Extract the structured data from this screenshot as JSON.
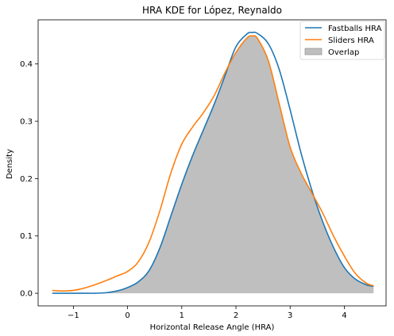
{
  "chart_data": {
    "type": "area",
    "title": "HRA KDE for López, Reynaldo",
    "xlabel": "Horizontal Release Angle (HRA)",
    "ylabel": "Density",
    "xlim": [
      -1.65,
      4.77
    ],
    "ylim": [
      -0.022,
      0.477
    ],
    "xticks": [
      -1,
      0,
      1,
      2,
      3,
      4
    ],
    "yticks": [
      0.0,
      0.1,
      0.2,
      0.3,
      0.4
    ],
    "grid": false,
    "legend_position": "top-right",
    "series": [
      {
        "name": "Fastballs HRA",
        "color": "#1f77b4",
        "x": [
          -1.39,
          -1.2,
          -1.0,
          -0.8,
          -0.6,
          -0.4,
          -0.2,
          0.0,
          0.2,
          0.4,
          0.6,
          0.8,
          1.0,
          1.2,
          1.4,
          1.6,
          1.8,
          2.0,
          2.2,
          2.3,
          2.4,
          2.6,
          2.8,
          3.0,
          3.2,
          3.4,
          3.6,
          3.8,
          4.0,
          4.2,
          4.4,
          4.54
        ],
        "y": [
          0.0,
          0.0,
          0.0,
          0.0,
          0.0,
          0.001,
          0.004,
          0.01,
          0.02,
          0.04,
          0.08,
          0.135,
          0.19,
          0.24,
          0.285,
          0.33,
          0.38,
          0.43,
          0.452,
          0.455,
          0.453,
          0.435,
          0.39,
          0.32,
          0.245,
          0.18,
          0.125,
          0.08,
          0.045,
          0.025,
          0.015,
          0.012
        ]
      },
      {
        "name": "Sliders HRA",
        "color": "#ff7f0e",
        "x": [
          -1.39,
          -1.2,
          -1.0,
          -0.8,
          -0.6,
          -0.4,
          -0.2,
          0.0,
          0.2,
          0.4,
          0.6,
          0.8,
          1.0,
          1.2,
          1.4,
          1.6,
          1.8,
          2.0,
          2.2,
          2.3,
          2.4,
          2.6,
          2.8,
          3.0,
          3.2,
          3.4,
          3.6,
          3.8,
          4.0,
          4.2,
          4.4,
          4.54
        ],
        "y": [
          0.005,
          0.004,
          0.005,
          0.009,
          0.015,
          0.022,
          0.03,
          0.038,
          0.055,
          0.09,
          0.145,
          0.21,
          0.26,
          0.29,
          0.315,
          0.345,
          0.385,
          0.42,
          0.445,
          0.449,
          0.444,
          0.405,
          0.33,
          0.255,
          0.21,
          0.175,
          0.14,
          0.1,
          0.065,
          0.035,
          0.018,
          0.013
        ]
      }
    ],
    "overlap": {
      "name": "Overlap",
      "color": "#bfbfbf",
      "description_of_fill": "minimum of the two curves"
    }
  }
}
